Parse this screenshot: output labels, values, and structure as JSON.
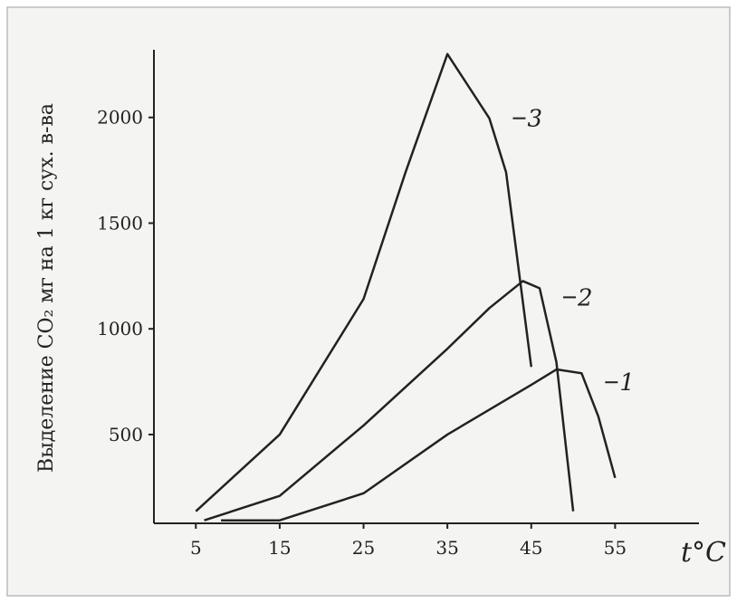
{
  "chart_data": {
    "type": "line",
    "y_label": "Выделение CO₂ мг на 1 кг сух. в-ва",
    "x_label": "t°C",
    "xlim": [
      0,
      65
    ],
    "xticks": [
      5,
      15,
      25,
      35,
      45,
      55
    ],
    "ylim": [
      80,
      2320
    ],
    "yticks": [
      500,
      1000,
      1500,
      2000
    ],
    "color": "#222222",
    "series": [
      {
        "name": "1",
        "x": [
          8,
          15,
          25,
          35,
          45,
          48,
          51,
          53,
          55
        ],
        "values": [
          94,
          94,
          222,
          500,
          735,
          808,
          790,
          585,
          295
        ]
      },
      {
        "name": "2",
        "x": [
          6,
          15,
          25,
          35,
          40,
          44,
          46,
          48,
          50
        ],
        "values": [
          94,
          210,
          543,
          906,
          1098,
          1226,
          1192,
          842,
          137
        ]
      },
      {
        "name": "3",
        "x": [
          5,
          15,
          25,
          30,
          35,
          40,
          42,
          45
        ],
        "values": [
          137,
          500,
          1141,
          1740,
          2300,
          1996,
          1740,
          820
        ]
      }
    ]
  }
}
